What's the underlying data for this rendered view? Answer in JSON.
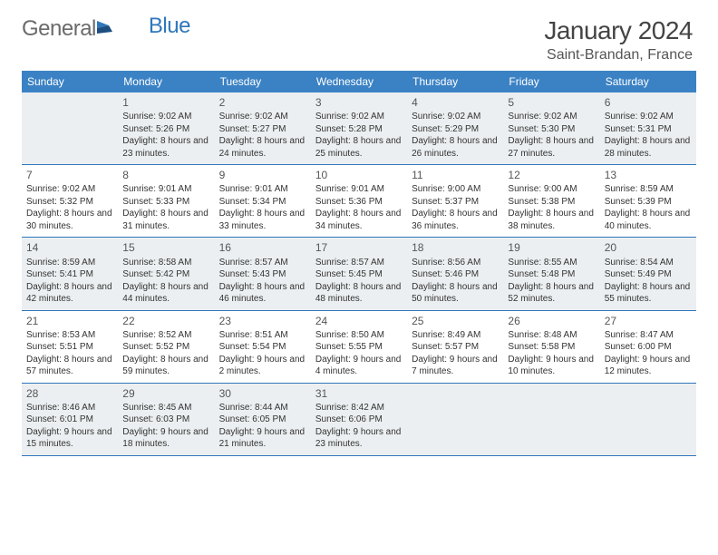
{
  "brand": {
    "text_a": "General",
    "text_b": "Blue",
    "text_a_color": "#6b6b6b",
    "text_b_color": "#2f77bc",
    "icon_color": "#2f77bc"
  },
  "title": "January 2024",
  "location": "Saint-Brandan, France",
  "colors": {
    "header_bg": "#3b82c4",
    "header_text": "#ffffff",
    "row_border": "#2f77bc",
    "shaded_cell": "#eceff1",
    "text": "#333333",
    "page_bg": "#ffffff"
  },
  "day_names": [
    "Sunday",
    "Monday",
    "Tuesday",
    "Wednesday",
    "Thursday",
    "Friday",
    "Saturday"
  ],
  "weeks": [
    [
      null,
      {
        "n": "1",
        "sr": "Sunrise: 9:02 AM",
        "ss": "Sunset: 5:26 PM",
        "dl": "Daylight: 8 hours and 23 minutes."
      },
      {
        "n": "2",
        "sr": "Sunrise: 9:02 AM",
        "ss": "Sunset: 5:27 PM",
        "dl": "Daylight: 8 hours and 24 minutes."
      },
      {
        "n": "3",
        "sr": "Sunrise: 9:02 AM",
        "ss": "Sunset: 5:28 PM",
        "dl": "Daylight: 8 hours and 25 minutes."
      },
      {
        "n": "4",
        "sr": "Sunrise: 9:02 AM",
        "ss": "Sunset: 5:29 PM",
        "dl": "Daylight: 8 hours and 26 minutes."
      },
      {
        "n": "5",
        "sr": "Sunrise: 9:02 AM",
        "ss": "Sunset: 5:30 PM",
        "dl": "Daylight: 8 hours and 27 minutes."
      },
      {
        "n": "6",
        "sr": "Sunrise: 9:02 AM",
        "ss": "Sunset: 5:31 PM",
        "dl": "Daylight: 8 hours and 28 minutes."
      }
    ],
    [
      {
        "n": "7",
        "sr": "Sunrise: 9:02 AM",
        "ss": "Sunset: 5:32 PM",
        "dl": "Daylight: 8 hours and 30 minutes."
      },
      {
        "n": "8",
        "sr": "Sunrise: 9:01 AM",
        "ss": "Sunset: 5:33 PM",
        "dl": "Daylight: 8 hours and 31 minutes."
      },
      {
        "n": "9",
        "sr": "Sunrise: 9:01 AM",
        "ss": "Sunset: 5:34 PM",
        "dl": "Daylight: 8 hours and 33 minutes."
      },
      {
        "n": "10",
        "sr": "Sunrise: 9:01 AM",
        "ss": "Sunset: 5:36 PM",
        "dl": "Daylight: 8 hours and 34 minutes."
      },
      {
        "n": "11",
        "sr": "Sunrise: 9:00 AM",
        "ss": "Sunset: 5:37 PM",
        "dl": "Daylight: 8 hours and 36 minutes."
      },
      {
        "n": "12",
        "sr": "Sunrise: 9:00 AM",
        "ss": "Sunset: 5:38 PM",
        "dl": "Daylight: 8 hours and 38 minutes."
      },
      {
        "n": "13",
        "sr": "Sunrise: 8:59 AM",
        "ss": "Sunset: 5:39 PM",
        "dl": "Daylight: 8 hours and 40 minutes."
      }
    ],
    [
      {
        "n": "14",
        "sr": "Sunrise: 8:59 AM",
        "ss": "Sunset: 5:41 PM",
        "dl": "Daylight: 8 hours and 42 minutes."
      },
      {
        "n": "15",
        "sr": "Sunrise: 8:58 AM",
        "ss": "Sunset: 5:42 PM",
        "dl": "Daylight: 8 hours and 44 minutes."
      },
      {
        "n": "16",
        "sr": "Sunrise: 8:57 AM",
        "ss": "Sunset: 5:43 PM",
        "dl": "Daylight: 8 hours and 46 minutes."
      },
      {
        "n": "17",
        "sr": "Sunrise: 8:57 AM",
        "ss": "Sunset: 5:45 PM",
        "dl": "Daylight: 8 hours and 48 minutes."
      },
      {
        "n": "18",
        "sr": "Sunrise: 8:56 AM",
        "ss": "Sunset: 5:46 PM",
        "dl": "Daylight: 8 hours and 50 minutes."
      },
      {
        "n": "19",
        "sr": "Sunrise: 8:55 AM",
        "ss": "Sunset: 5:48 PM",
        "dl": "Daylight: 8 hours and 52 minutes."
      },
      {
        "n": "20",
        "sr": "Sunrise: 8:54 AM",
        "ss": "Sunset: 5:49 PM",
        "dl": "Daylight: 8 hours and 55 minutes."
      }
    ],
    [
      {
        "n": "21",
        "sr": "Sunrise: 8:53 AM",
        "ss": "Sunset: 5:51 PM",
        "dl": "Daylight: 8 hours and 57 minutes."
      },
      {
        "n": "22",
        "sr": "Sunrise: 8:52 AM",
        "ss": "Sunset: 5:52 PM",
        "dl": "Daylight: 8 hours and 59 minutes."
      },
      {
        "n": "23",
        "sr": "Sunrise: 8:51 AM",
        "ss": "Sunset: 5:54 PM",
        "dl": "Daylight: 9 hours and 2 minutes."
      },
      {
        "n": "24",
        "sr": "Sunrise: 8:50 AM",
        "ss": "Sunset: 5:55 PM",
        "dl": "Daylight: 9 hours and 4 minutes."
      },
      {
        "n": "25",
        "sr": "Sunrise: 8:49 AM",
        "ss": "Sunset: 5:57 PM",
        "dl": "Daylight: 9 hours and 7 minutes."
      },
      {
        "n": "26",
        "sr": "Sunrise: 8:48 AM",
        "ss": "Sunset: 5:58 PM",
        "dl": "Daylight: 9 hours and 10 minutes."
      },
      {
        "n": "27",
        "sr": "Sunrise: 8:47 AM",
        "ss": "Sunset: 6:00 PM",
        "dl": "Daylight: 9 hours and 12 minutes."
      }
    ],
    [
      {
        "n": "28",
        "sr": "Sunrise: 8:46 AM",
        "ss": "Sunset: 6:01 PM",
        "dl": "Daylight: 9 hours and 15 minutes."
      },
      {
        "n": "29",
        "sr": "Sunrise: 8:45 AM",
        "ss": "Sunset: 6:03 PM",
        "dl": "Daylight: 9 hours and 18 minutes."
      },
      {
        "n": "30",
        "sr": "Sunrise: 8:44 AM",
        "ss": "Sunset: 6:05 PM",
        "dl": "Daylight: 9 hours and 21 minutes."
      },
      {
        "n": "31",
        "sr": "Sunrise: 8:42 AM",
        "ss": "Sunset: 6:06 PM",
        "dl": "Daylight: 9 hours and 23 minutes."
      },
      null,
      null,
      null
    ]
  ]
}
